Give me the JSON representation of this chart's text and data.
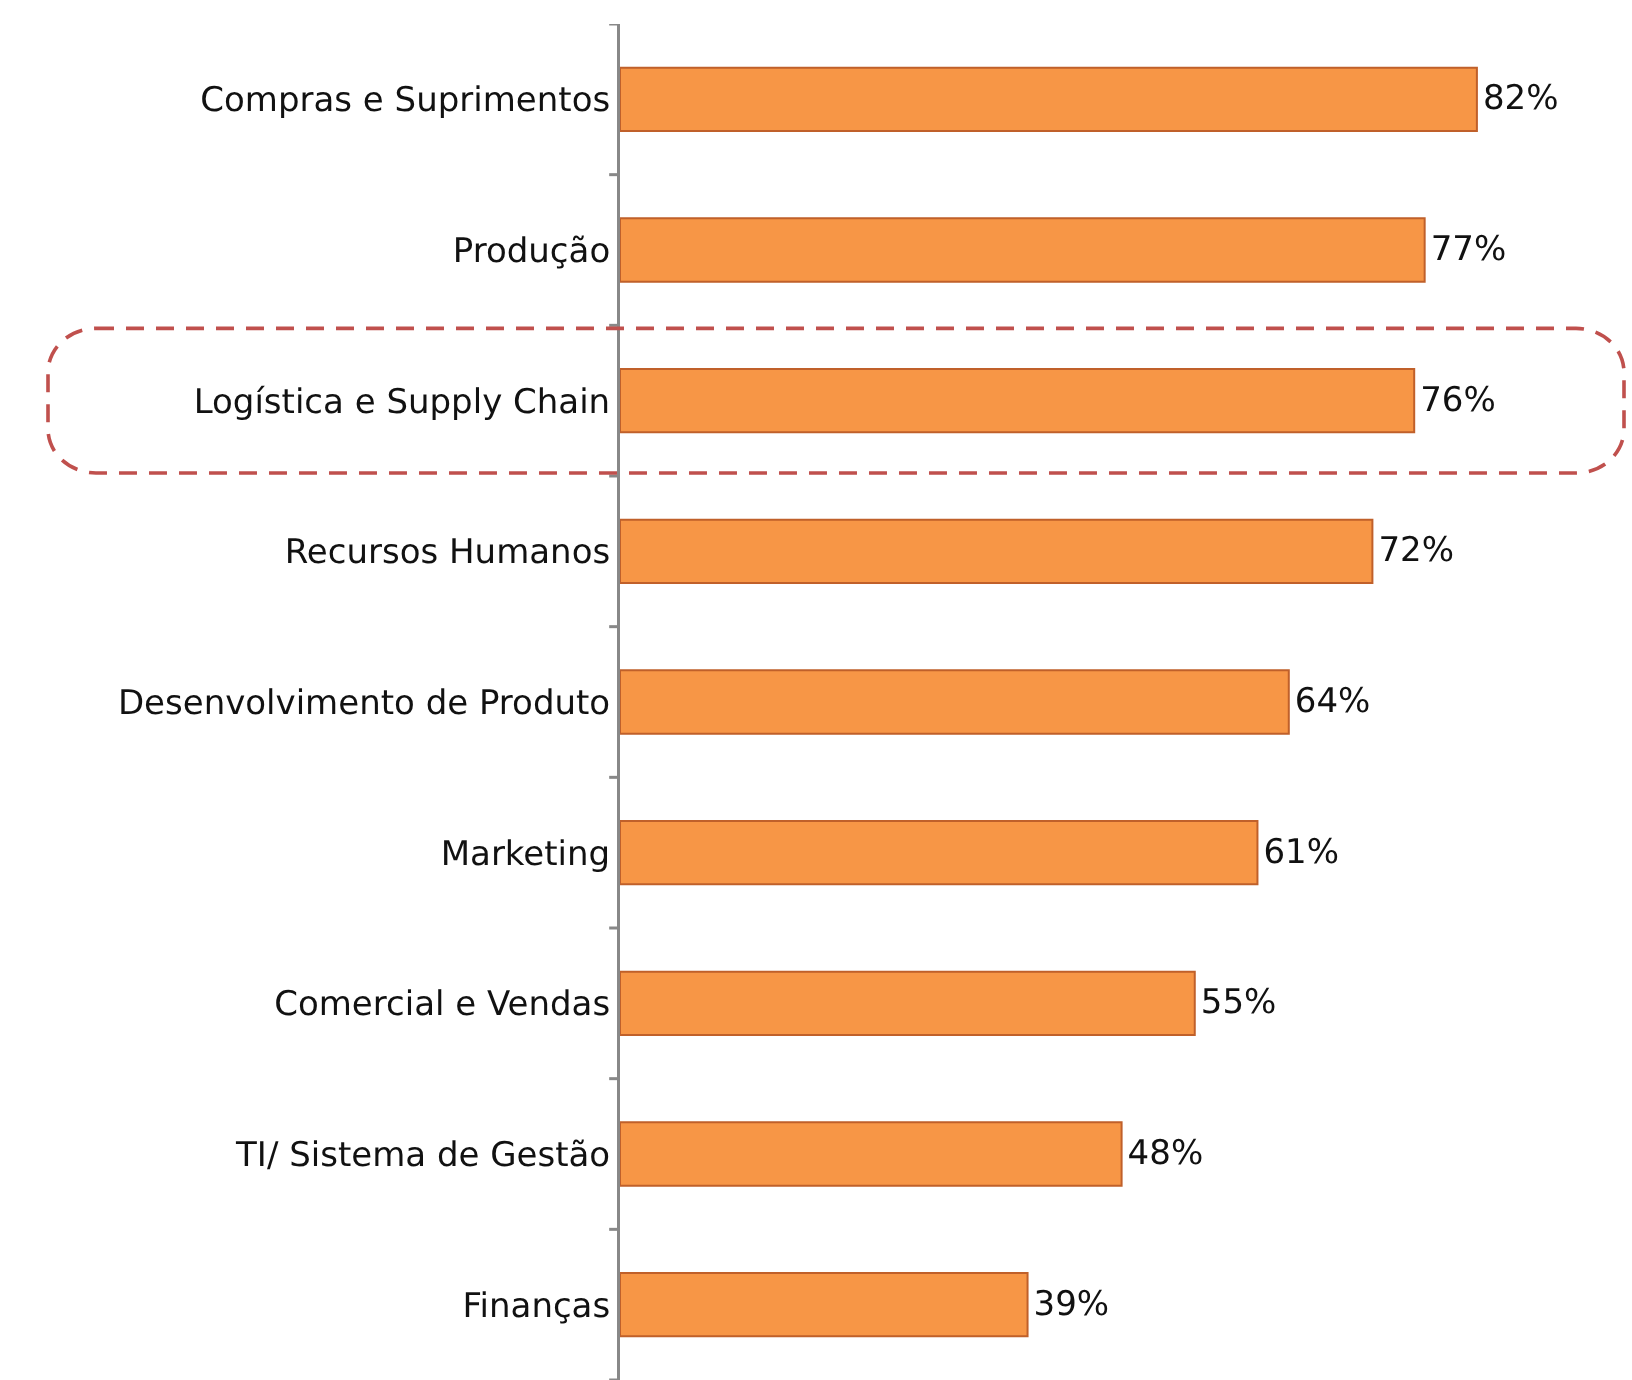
{
  "chart_data": {
    "type": "bar",
    "orientation": "horizontal",
    "categories": [
      "Compras e Suprimentos",
      "Produção",
      "Logística e Supply Chain",
      "Recursos Humanos",
      "Desenvolvimento de Produto",
      "Marketing",
      "Comercial e Vendas",
      "TI/ Sistema de Gestão",
      "Finanças"
    ],
    "values": [
      82,
      77,
      76,
      72,
      64,
      61,
      55,
      48,
      39
    ],
    "value_labels": [
      "82%",
      "77%",
      "76%",
      "72%",
      "64%",
      "61%",
      "55%",
      "48%",
      "39%"
    ],
    "color": "#f79646",
    "tick_labels": "y"
  }
}
